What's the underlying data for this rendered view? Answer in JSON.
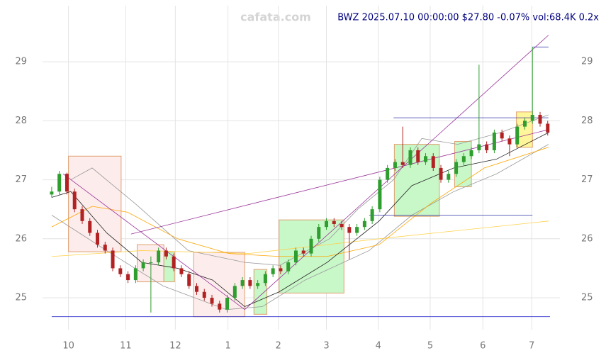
{
  "chart_data": {
    "type": "candlestick",
    "title": "BWZ 2025.07.10 00:00:00 $27.80 -0.07% vol:68.4K 0.2x",
    "watermark": "cafata.com",
    "up_color": "#2e9e2e",
    "down_color": "#b22222",
    "xlim": [
      -1.2,
      66.6
    ],
    "ylim": [
      24.46,
      29.95
    ],
    "xticks": [
      {
        "value": 2.2,
        "label": "10"
      },
      {
        "value": 9.7,
        "label": "11"
      },
      {
        "value": 16.2,
        "label": "12"
      },
      {
        "value": 23.1,
        "label": "1"
      },
      {
        "value": 29.7,
        "label": "2"
      },
      {
        "value": 36.0,
        "label": "3"
      },
      {
        "value": 42.8,
        "label": "4"
      },
      {
        "value": 49.6,
        "label": "5"
      },
      {
        "value": 56.5,
        "label": "6"
      },
      {
        "value": 62.9,
        "label": "7"
      }
    ],
    "yticks": [
      25,
      26,
      27,
      28,
      29
    ],
    "grid": true,
    "candles": [
      [
        26.75,
        26.88,
        26.7,
        26.8
      ],
      [
        26.8,
        27.15,
        26.75,
        27.1
      ],
      [
        27.1,
        27.12,
        26.75,
        26.8
      ],
      [
        26.8,
        26.85,
        26.45,
        26.5
      ],
      [
        26.5,
        26.55,
        26.25,
        26.3
      ],
      [
        26.3,
        26.35,
        26.05,
        26.1
      ],
      [
        26.1,
        26.15,
        25.85,
        25.9
      ],
      [
        25.9,
        25.95,
        25.75,
        25.8
      ],
      [
        25.8,
        25.85,
        25.45,
        25.5
      ],
      [
        25.5,
        25.55,
        25.35,
        25.4
      ],
      [
        25.4,
        25.45,
        25.25,
        25.3
      ],
      [
        25.3,
        25.55,
        25.25,
        25.5
      ],
      [
        25.5,
        25.65,
        25.45,
        25.6
      ],
      [
        25.6,
        25.7,
        24.75,
        25.6
      ],
      [
        25.6,
        25.85,
        25.55,
        25.8
      ],
      [
        25.8,
        25.85,
        25.65,
        25.7
      ],
      [
        25.7,
        25.75,
        25.45,
        25.5
      ],
      [
        25.5,
        25.55,
        25.35,
        25.4
      ],
      [
        25.4,
        25.45,
        25.15,
        25.2
      ],
      [
        25.2,
        25.25,
        25.05,
        25.1
      ],
      [
        25.1,
        25.15,
        24.95,
        25.0
      ],
      [
        25.0,
        25.05,
        24.85,
        24.9
      ],
      [
        24.9,
        24.95,
        24.75,
        24.8
      ],
      [
        24.8,
        25.05,
        24.75,
        25.0
      ],
      [
        25.0,
        25.25,
        24.95,
        25.2
      ],
      [
        25.2,
        25.35,
        25.15,
        25.3
      ],
      [
        25.3,
        25.35,
        25.15,
        25.2
      ],
      [
        25.2,
        25.3,
        25.15,
        25.25
      ],
      [
        25.25,
        25.45,
        25.2,
        25.4
      ],
      [
        25.4,
        25.55,
        25.35,
        25.5
      ],
      [
        25.5,
        25.55,
        25.4,
        25.45
      ],
      [
        25.45,
        25.65,
        25.4,
        25.6
      ],
      [
        25.6,
        25.85,
        25.55,
        25.8
      ],
      [
        25.8,
        25.85,
        25.7,
        25.75
      ],
      [
        25.75,
        26.05,
        25.7,
        26.0
      ],
      [
        26.0,
        26.25,
        25.95,
        26.2
      ],
      [
        26.2,
        26.35,
        26.15,
        26.3
      ],
      [
        26.3,
        26.35,
        26.2,
        26.25
      ],
      [
        26.25,
        26.3,
        26.15,
        26.2
      ],
      [
        26.2,
        26.25,
        25.65,
        26.1
      ],
      [
        26.1,
        26.25,
        26.05,
        26.2
      ],
      [
        26.2,
        26.35,
        26.15,
        26.3
      ],
      [
        26.3,
        26.55,
        26.25,
        26.5
      ],
      [
        26.5,
        27.05,
        26.45,
        27.0
      ],
      [
        27.0,
        27.25,
        26.95,
        27.2
      ],
      [
        27.2,
        27.35,
        27.15,
        27.3
      ],
      [
        27.3,
        27.9,
        27.2,
        27.25
      ],
      [
        27.25,
        27.55,
        27.2,
        27.5
      ],
      [
        27.5,
        27.55,
        27.25,
        27.3
      ],
      [
        27.3,
        27.45,
        27.25,
        27.4
      ],
      [
        27.4,
        27.45,
        27.15,
        27.2
      ],
      [
        27.2,
        27.25,
        26.95,
        27.0
      ],
      [
        27.0,
        27.15,
        26.95,
        27.1
      ],
      [
        27.1,
        27.35,
        27.05,
        27.3
      ],
      [
        27.3,
        27.45,
        27.25,
        27.4
      ],
      [
        27.4,
        27.55,
        27.35,
        27.5
      ],
      [
        27.5,
        28.95,
        27.45,
        27.6
      ],
      [
        27.6,
        27.65,
        27.45,
        27.5
      ],
      [
        27.5,
        27.85,
        27.45,
        27.8
      ],
      [
        27.8,
        27.85,
        27.65,
        27.7
      ],
      [
        27.7,
        27.75,
        27.4,
        27.6
      ],
      [
        27.6,
        27.95,
        27.55,
        27.9
      ],
      [
        27.9,
        28.05,
        27.85,
        28.0
      ],
      [
        28.0,
        29.25,
        27.95,
        28.1
      ],
      [
        28.1,
        28.15,
        27.9,
        27.95
      ],
      [
        27.95,
        28.0,
        27.75,
        27.8
      ]
    ],
    "zones": [
      {
        "x": [
          2.2,
          9.1
        ],
        "y": [
          25.78,
          27.4
        ],
        "color": "#fdecec"
      },
      {
        "x": [
          11.2,
          14.7
        ],
        "y": [
          25.27,
          25.9
        ],
        "color": "#fdecec"
      },
      {
        "x": [
          14.7,
          16.1
        ],
        "y": [
          25.27,
          25.78
        ],
        "color": "#c8f7c8"
      },
      {
        "x": [
          18.6,
          25.3
        ],
        "y": [
          24.68,
          25.77
        ],
        "color": "#fdecec"
      },
      {
        "x": [
          26.5,
          28.2
        ],
        "y": [
          24.72,
          25.48
        ],
        "color": "#c8f7c8"
      },
      {
        "x": [
          29.8,
          38.3
        ],
        "y": [
          25.08,
          26.32
        ],
        "color": "#c8f7c8"
      },
      {
        "x": [
          44.9,
          50.8
        ],
        "y": [
          26.38,
          27.6
        ],
        "color": "#c8f7c8"
      },
      {
        "x": [
          52.8,
          55.0
        ],
        "y": [
          26.88,
          27.65
        ],
        "color": "#c8f7c8"
      },
      {
        "x": [
          60.9,
          63.0
        ],
        "y": [
          27.55,
          28.15
        ],
        "color": "#fff59a"
      }
    ],
    "series": [
      {
        "color": "#999999",
        "x": [
          2.5,
          5.3,
          10.9,
          17.9,
          25.3,
          29.9,
          36.4,
          40.1,
          44.8,
          48.5,
          53.2,
          58.8,
          65.1
        ],
        "values": [
          27.0,
          27.2,
          26.6,
          25.8,
          25.6,
          25.55,
          26.0,
          26.5,
          27.0,
          27.7,
          27.6,
          27.8,
          28.1
        ]
      },
      {
        "color": "#999999",
        "x": [
          0,
          7.2,
          14.6,
          22.9,
          27.6,
          33.2,
          41.6,
          47.2,
          52.7,
          58.3,
          65.1
        ],
        "values": [
          26.4,
          25.8,
          25.2,
          24.8,
          24.85,
          25.3,
          25.8,
          26.4,
          26.8,
          27.1,
          27.6
        ]
      },
      {
        "color": "#ffd24d",
        "x": [
          0,
          11.8,
          25.8,
          42.9,
          65.1
        ],
        "values": [
          25.7,
          25.8,
          25.75,
          26.0,
          26.3
        ]
      },
      {
        "color": "#ffa500",
        "x": [
          0,
          5.3,
          9.95,
          16.5,
          23.2,
          29.8,
          36.1,
          42.9,
          49.7,
          56.7,
          65.1
        ],
        "values": [
          26.2,
          26.55,
          26.45,
          26.0,
          25.75,
          25.7,
          25.7,
          25.9,
          26.6,
          27.2,
          27.55
        ]
      },
      {
        "color": "#222222",
        "x": [
          0,
          2.5,
          7.2,
          11.8,
          16.5,
          21.1,
          25.3,
          29.8,
          36.1,
          42.9,
          47.2,
          52.7,
          58.3,
          65.1
        ],
        "values": [
          26.7,
          26.8,
          26.1,
          25.6,
          25.5,
          25.3,
          24.85,
          25.1,
          25.6,
          26.3,
          26.9,
          27.2,
          27.35,
          27.8
        ]
      }
    ],
    "lines": [
      {
        "x": [
          1.5,
          25.3
        ],
        "y": [
          27.1,
          24.8
        ],
        "color": "#993399"
      },
      {
        "x": [
          25.3,
          65.1
        ],
        "y": [
          24.8,
          29.45
        ],
        "color": "#993399"
      },
      {
        "x": [
          10.4,
          65.1
        ],
        "y": [
          26.08,
          27.85
        ],
        "color": "#993399"
      },
      {
        "x": [
          44.8,
          65.1
        ],
        "y": [
          28.05,
          28.05
        ],
        "color": "#3333aa"
      },
      {
        "x": [
          41.6,
          63.0
        ],
        "y": [
          26.4,
          26.4
        ],
        "color": "#3333aa"
      },
      {
        "x": [
          63.0,
          65.1
        ],
        "y": [
          29.25,
          29.25
        ],
        "color": "#3333aa"
      },
      {
        "x": [
          0,
          65.3
        ],
        "y": [
          24.68,
          24.68
        ],
        "color": "#3333cc"
      }
    ]
  }
}
